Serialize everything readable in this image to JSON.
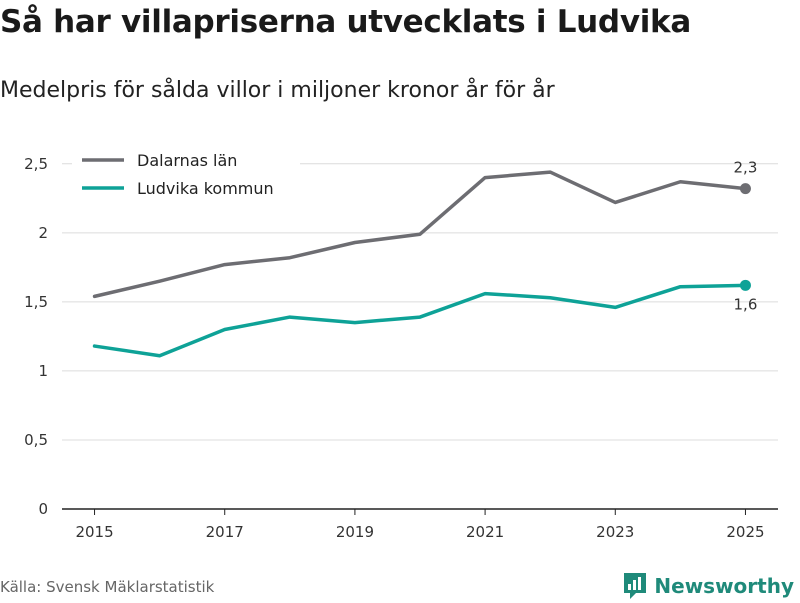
{
  "title": "Så har villapriserna utvecklats i Ludvika",
  "subtitle": "Medelpris för sålda villor i miljoner kronor år för år",
  "source": "Källa: Svensk Mäklarstatistik",
  "brand": "Newsworthy",
  "colors": {
    "dalarna": "#6d6d72",
    "ludvika": "#0ea297",
    "grid": "#dcdcdc",
    "brand": "#1f8a7a"
  },
  "chart_data": {
    "type": "line",
    "title": "Så har villapriserna utvecklats i Ludvika",
    "subtitle": "Medelpris för sålda villor i miljoner kronor år för år",
    "x": [
      2015,
      2016,
      2017,
      2018,
      2019,
      2020,
      2021,
      2022,
      2023,
      2024,
      2025
    ],
    "x_tick_labels": [
      "2015",
      "2017",
      "2019",
      "2021",
      "2023",
      "2025"
    ],
    "x_tick_values": [
      2015,
      2017,
      2019,
      2021,
      2023,
      2025
    ],
    "y_tick_labels": [
      "0",
      "0,5",
      "1",
      "1,5",
      "2",
      "2,5"
    ],
    "y_tick_values": [
      0,
      0.5,
      1,
      1.5,
      2,
      2.5
    ],
    "ylim": [
      0,
      2.6
    ],
    "xlim": [
      2014.5,
      2025.5
    ],
    "grid": true,
    "legend_position": "top-left",
    "series": [
      {
        "name": "Dalarnas län",
        "color": "#6d6d72",
        "values": [
          1.54,
          1.65,
          1.77,
          1.82,
          1.93,
          1.99,
          2.4,
          2.44,
          2.22,
          2.37,
          2.32
        ],
        "end_label": "2,3"
      },
      {
        "name": "Ludvika kommun",
        "color": "#0ea297",
        "values": [
          1.18,
          1.11,
          1.3,
          1.39,
          1.35,
          1.39,
          1.56,
          1.53,
          1.46,
          1.61,
          1.62
        ],
        "end_label": "1,6"
      }
    ]
  }
}
